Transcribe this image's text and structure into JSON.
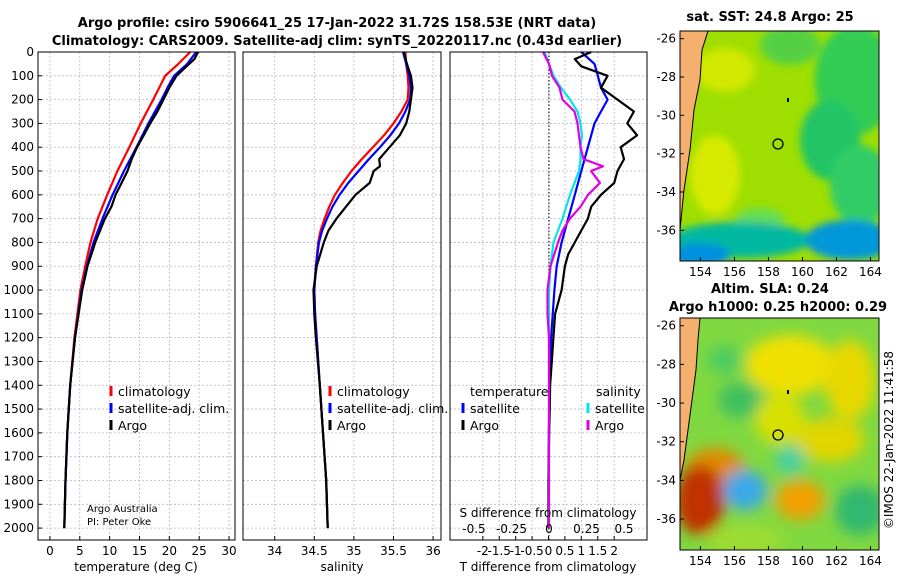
{
  "header": {
    "line1": "Argo profile: csiro 5906641_25 17-Jan-2022 31.72S 158.53E (NRT data)",
    "line2": "Climatology: CARS2009. Satellite-adj clim: synTS_20220117.nc (0.43d earlier)"
  },
  "colors": {
    "climatology": "#ff0000",
    "satellite": "#0000ff",
    "argo": "#000000",
    "sat_salinity": "#00e5ee",
    "argo_salinity": "#e000e0"
  },
  "depth_ticks": [
    "0",
    "100",
    "200",
    "300",
    "400",
    "500",
    "600",
    "700",
    "800",
    "900",
    "1000",
    "1100",
    "1200",
    "1300",
    "1400",
    "1500",
    "1600",
    "1700",
    "1800",
    "1900",
    "2000"
  ],
  "chart_data": [
    {
      "type": "line",
      "title": "",
      "xlabel": "temperature (deg C)",
      "ylabel": "",
      "xlim": [
        -2,
        31
      ],
      "ylim": [
        2050,
        0
      ],
      "xticks": [
        "0",
        "5",
        "10",
        "15",
        "20",
        "25",
        "30"
      ],
      "legend": [
        "climatology",
        "satellite-adj. clim.",
        "Argo"
      ],
      "series": [
        {
          "name": "climatology",
          "depth": [
            0,
            50,
            100,
            150,
            200,
            300,
            400,
            500,
            600,
            700,
            800,
            900,
            1000,
            1200,
            1400,
            1600,
            1800,
            2000
          ],
          "values": [
            23.5,
            21.5,
            19.3,
            18.3,
            17.3,
            15.2,
            13.3,
            11.3,
            9.6,
            8.0,
            6.8,
            5.9,
            5.1,
            4.1,
            3.4,
            2.9,
            2.6,
            2.4
          ]
        },
        {
          "name": "satellite-adj. clim.",
          "depth": [
            0,
            50,
            100,
            150,
            200,
            300,
            400,
            500,
            600,
            700,
            800,
            900,
            1000,
            1200,
            1400,
            1600,
            1800,
            2000
          ],
          "values": [
            24.5,
            23.0,
            20.8,
            19.7,
            18.7,
            16.5,
            14.5,
            12.4,
            10.5,
            8.8,
            7.3,
            6.2,
            5.3,
            4.2,
            3.4,
            2.9,
            2.6,
            2.4
          ]
        },
        {
          "name": "Argo",
          "depth": [
            0,
            30,
            60,
            100,
            150,
            200,
            250,
            300,
            350,
            400,
            450,
            500,
            550,
            600,
            650,
            700,
            800,
            900,
            1000,
            1200,
            1400,
            1600,
            1800,
            2000
          ],
          "values": [
            24.8,
            24.2,
            22.9,
            21.2,
            20.0,
            19.0,
            18.0,
            16.8,
            15.7,
            14.6,
            13.7,
            13.0,
            12.0,
            11.0,
            10.3,
            9.2,
            7.6,
            6.3,
            5.4,
            4.2,
            3.4,
            2.9,
            2.6,
            2.4
          ]
        }
      ]
    },
    {
      "type": "line",
      "title": "",
      "xlabel": "salinity",
      "ylabel": "",
      "xlim": [
        33.6,
        36.1
      ],
      "ylim": [
        2050,
        0
      ],
      "xticks": [
        "34",
        "34.5",
        "35",
        "35.5",
        "36"
      ],
      "legend": [
        "climatology",
        "satellite-adj. clim.",
        "Argo"
      ],
      "series": [
        {
          "name": "climatology",
          "depth": [
            0,
            50,
            100,
            150,
            200,
            250,
            300,
            350,
            400,
            450,
            500,
            550,
            600,
            650,
            700,
            750,
            800,
            900,
            1000,
            1100,
            1200,
            1400,
            1600,
            1800,
            2000
          ],
          "values": [
            35.65,
            35.66,
            35.68,
            35.69,
            35.68,
            35.6,
            35.5,
            35.38,
            35.24,
            35.1,
            34.97,
            34.86,
            34.76,
            34.69,
            34.63,
            34.58,
            34.55,
            34.52,
            34.5,
            34.51,
            34.53,
            34.57,
            34.61,
            34.65,
            34.67
          ]
        },
        {
          "name": "satellite-adj. clim.",
          "depth": [
            0,
            50,
            100,
            150,
            200,
            250,
            300,
            350,
            400,
            450,
            500,
            550,
            600,
            650,
            700,
            750,
            800,
            900,
            1000,
            1100,
            1200,
            1400,
            1600,
            1800,
            2000
          ],
          "values": [
            35.62,
            35.66,
            35.7,
            35.72,
            35.71,
            35.65,
            35.57,
            35.46,
            35.33,
            35.19,
            35.06,
            34.93,
            34.82,
            34.73,
            34.66,
            34.6,
            34.56,
            34.52,
            34.5,
            34.51,
            34.53,
            34.57,
            34.61,
            34.65,
            34.67
          ]
        },
        {
          "name": "Argo",
          "depth": [
            0,
            50,
            100,
            150,
            200,
            250,
            300,
            350,
            400,
            450,
            480,
            500,
            550,
            600,
            650,
            700,
            750,
            800,
            900,
            1000,
            1100,
            1200,
            1400,
            1600,
            1800,
            2000
          ],
          "values": [
            35.63,
            35.67,
            35.72,
            35.74,
            35.72,
            35.7,
            35.66,
            35.58,
            35.45,
            35.32,
            35.33,
            35.25,
            35.2,
            35.02,
            34.9,
            34.78,
            34.68,
            34.62,
            34.53,
            34.49,
            34.5,
            34.52,
            34.57,
            34.61,
            34.65,
            34.67
          ]
        }
      ]
    },
    {
      "type": "line",
      "title": "",
      "xlabel": "T difference from climatology",
      "xlabel_top": "S difference from climatology",
      "ylabel": "",
      "xlim": [
        -3,
        3
      ],
      "ylim": [
        2050,
        0
      ],
      "xticks": [
        "-2",
        "-1.5",
        "-1",
        "-0.5",
        "0",
        "0.5",
        "1",
        "1.5",
        "2"
      ],
      "xticks_top": [
        "-0.5",
        "-0.25",
        "0",
        "0.25",
        "0.5"
      ],
      "legend_left": {
        "title": "temperature",
        "items": [
          "satellite",
          "Argo"
        ]
      },
      "legend_right": {
        "title": "salinity",
        "items": [
          "satellite",
          "Argo"
        ]
      },
      "series": [
        {
          "name": "temperature satellite",
          "depth": [
            0,
            50,
            100,
            150,
            200,
            250,
            300,
            350,
            400,
            500,
            600,
            700,
            800,
            900,
            1000,
            1200,
            1400,
            1600,
            1800,
            2000
          ],
          "values": [
            1.0,
            1.4,
            1.5,
            1.6,
            1.8,
            1.6,
            1.4,
            1.3,
            1.2,
            1.0,
            0.8,
            0.6,
            0.4,
            0.25,
            0.18,
            0.08,
            0.03,
            0.01,
            0.0,
            0.0
          ]
        },
        {
          "name": "temperature Argo",
          "depth": [
            0,
            30,
            60,
            100,
            150,
            200,
            250,
            300,
            350,
            400,
            450,
            500,
            550,
            600,
            650,
            700,
            750,
            800,
            850,
            900,
            1000,
            1100,
            1200,
            1300,
            1400,
            1500,
            1600,
            1700,
            1800,
            1900,
            2000
          ],
          "values": [
            1.3,
            0.8,
            1.0,
            1.8,
            1.6,
            2.1,
            2.6,
            2.4,
            2.7,
            2.2,
            2.3,
            2.1,
            2.0,
            1.6,
            1.3,
            1.2,
            1.0,
            0.8,
            0.6,
            0.5,
            0.4,
            0.2,
            0.15,
            0.1,
            0.05,
            0.04,
            0.02,
            0.01,
            0.0,
            0.0,
            0.0
          ]
        },
        {
          "name": "salinity satellite",
          "depth": [
            0,
            50,
            100,
            150,
            200,
            250,
            300,
            350,
            400,
            450,
            500,
            600,
            700,
            800,
            900,
            1000,
            1200,
            1400,
            1600,
            1800,
            2000
          ],
          "values": [
            -0.03,
            0.0,
            0.03,
            0.08,
            0.14,
            0.19,
            0.21,
            0.22,
            0.21,
            0.21,
            0.2,
            0.14,
            0.09,
            0.03,
            0.01,
            0.0,
            0.0,
            0.0,
            0.0,
            0.0,
            0.0
          ]
        },
        {
          "name": "salinity Argo",
          "depth": [
            0,
            50,
            100,
            150,
            200,
            250,
            300,
            350,
            400,
            450,
            480,
            500,
            550,
            600,
            650,
            700,
            750,
            800,
            900,
            1000,
            1100,
            1200,
            1400,
            1600,
            1800,
            2000
          ],
          "values": [
            -0.04,
            0.0,
            0.02,
            0.07,
            0.09,
            0.17,
            0.19,
            0.2,
            0.21,
            0.23,
            0.36,
            0.28,
            0.34,
            0.26,
            0.21,
            0.14,
            0.09,
            0.06,
            0.01,
            -0.01,
            -0.01,
            0.0,
            0.0,
            0.0,
            0.0,
            0.0
          ]
        }
      ]
    },
    {
      "type": "heatmap",
      "title": "sat. SST: 24.8 Argo: 25",
      "xticks": [
        "154",
        "156",
        "158",
        "160",
        "162",
        "164"
      ],
      "yticks": [
        "-26",
        "-28",
        "-30",
        "-32",
        "-34",
        "-36"
      ],
      "xlim": [
        152.8,
        164.5
      ],
      "ylim": [
        -37.6,
        -25.6
      ],
      "argo_position": {
        "lon": 158.53,
        "lat": -31.72
      }
    },
    {
      "type": "heatmap",
      "title_line1": "Altim. SLA: 0.24",
      "title_line2": "Argo h1000: 0.25 h2000: 0.29",
      "xticks": [
        "154",
        "156",
        "158",
        "160",
        "162",
        "164"
      ],
      "yticks": [
        "-26",
        "-28",
        "-30",
        "-32",
        "-34",
        "-36"
      ],
      "xlim": [
        152.8,
        164.5
      ],
      "ylim": [
        -37.6,
        -25.6
      ],
      "argo_position": {
        "lon": 158.53,
        "lat": -31.72
      }
    }
  ],
  "footer": {
    "institution": "Argo Australia",
    "pi": "PI: Peter Oke",
    "watermark": "©IMOS 22-Jan-2022 11:41:58"
  }
}
